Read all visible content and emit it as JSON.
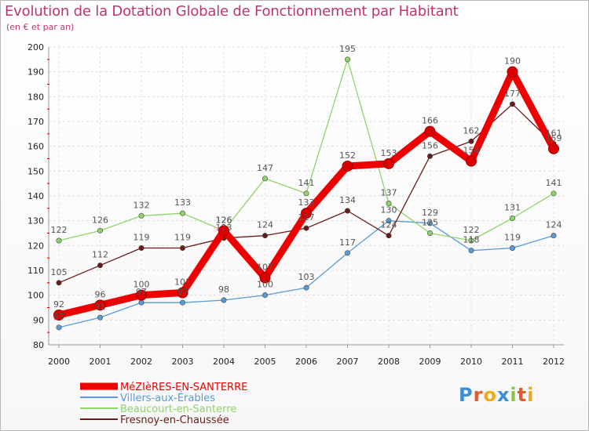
{
  "title": "Evolution de la Dotation Globale de Fonctionnement par Habitant",
  "subtitle": "(en € et par an)",
  "logo": "Proxiti",
  "chart_data": {
    "type": "line",
    "title": "Evolution de la Dotation Globale de Fonctionnement par Habitant",
    "subtitle": "(en € et par an)",
    "categories": [
      "2000",
      "2001",
      "2002",
      "2003",
      "2004",
      "2005",
      "2006",
      "2007",
      "2008",
      "2009",
      "2010",
      "2011",
      "2012"
    ],
    "ylim": [
      80,
      200
    ],
    "yticks": [
      80,
      90,
      100,
      110,
      120,
      130,
      140,
      150,
      160,
      170,
      180,
      190,
      200
    ],
    "grid": true,
    "legend_position": "bottom-left",
    "series": [
      {
        "name": "Villers-aux-Érables",
        "color": "#5b9bd5",
        "values": [
          87,
          91,
          97,
          97,
          98,
          100,
          103,
          117,
          130,
          129,
          118,
          119,
          124
        ]
      },
      {
        "name": "Beaucourt-en-Santerre",
        "color": "#8fd46b",
        "values": [
          122,
          126,
          132,
          133,
          126,
          147,
          141,
          195,
          137,
          125,
          122,
          131,
          141
        ]
      },
      {
        "name": "Fresnoy-en-Chaussée",
        "color": "#6b1a1a",
        "values": [
          105,
          112,
          119,
          119,
          123,
          124,
          127,
          134,
          124,
          156,
          162,
          177,
          161
        ]
      },
      {
        "name": "MéZIèRES-EN-SANTERRE",
        "color": "#ee0000",
        "values": [
          92,
          96,
          100,
          101,
          126,
          107,
          133,
          152,
          153,
          166,
          154,
          190,
          159
        ]
      }
    ]
  }
}
